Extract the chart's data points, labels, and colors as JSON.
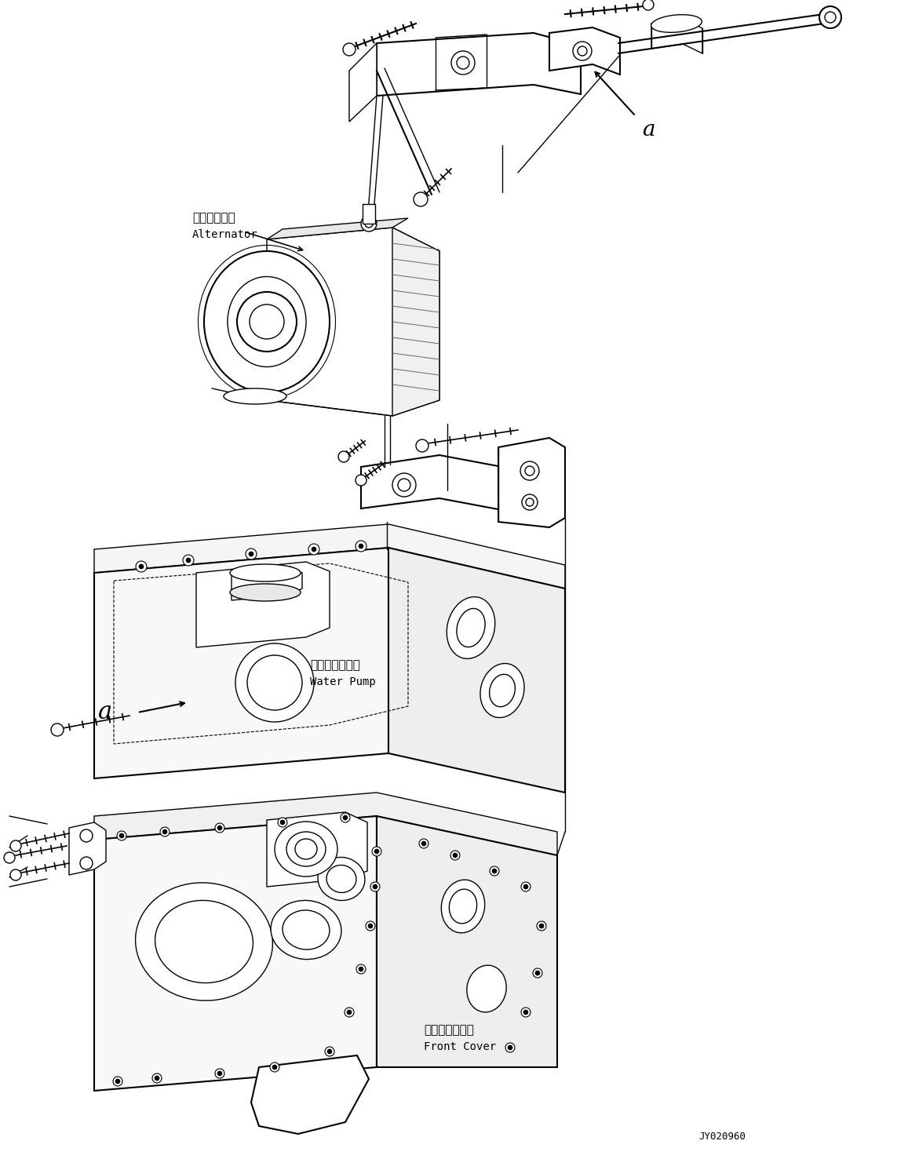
{
  "background_color": "#ffffff",
  "line_color": "#000000",
  "figure_width": 11.43,
  "figure_height": 14.77,
  "dpi": 100,
  "labels": {
    "alternator_jp": "オルタネータ",
    "alternator_en": "Alternator",
    "water_pump_jp": "ウォータポンプ",
    "water_pump_en": "Water Pump",
    "front_cover_jp": "フロントカバー",
    "front_cover_en": "Front Cover",
    "label_a": "a",
    "drawing_no": "JY020960"
  }
}
